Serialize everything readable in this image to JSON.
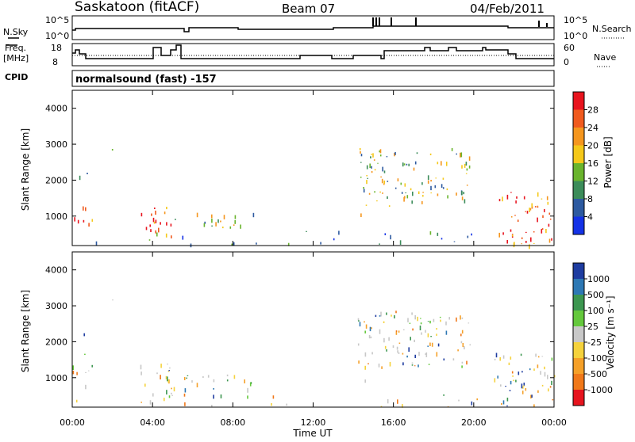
{
  "header": {
    "station": "Saskatoon (fitACF)",
    "beam": "Beam 07",
    "date": "04/Feb/2011"
  },
  "top_panel": {
    "nsky_label": "N.Sky",
    "nsearch_label": "N.Search",
    "left_ticks": [
      "10^5",
      "10^0"
    ],
    "right_ticks": [
      "10^5",
      "10^0"
    ]
  },
  "freq_panel": {
    "freq_label_1": "Freq.",
    "freq_label_2": "[MHz]",
    "nave_label": "Nave",
    "left_ticks": [
      "18",
      "8"
    ],
    "right_ticks": [
      "60",
      "0"
    ]
  },
  "cpid": {
    "label": "CPID",
    "value": "normalsound (fast) -157"
  },
  "power_panel": {
    "ylabel": "Slant Range [km]",
    "yticks": [
      "4000",
      "3000",
      "2000",
      "1000"
    ],
    "colorbar_label": "Power [dB]",
    "colorbar_ticks": [
      "28",
      "24",
      "20",
      "16",
      "12",
      "8",
      "4"
    ],
    "colorbar_colors": [
      "#e8141e",
      "#f05a1e",
      "#f5961e",
      "#f5c819",
      "#6ab42d",
      "#3c8c5a",
      "#2d5aa0",
      "#1432e6"
    ]
  },
  "velocity_panel": {
    "ylabel": "Slant Range [km]",
    "yticks": [
      "4000",
      "3000",
      "2000",
      "1000"
    ],
    "colorbar_label": "Velocity [m s⁻¹]",
    "colorbar_ticks": [
      "1000",
      "500",
      "100",
      "25",
      "-25",
      "-100",
      "-500",
      "-1000"
    ],
    "colorbar_colors": [
      "#1e3ca0",
      "#2d78b4",
      "#3c9650",
      "#64c83c",
      "#c8c8c8",
      "#f5d23c",
      "#f5a028",
      "#f07819",
      "#e6141e"
    ]
  },
  "xaxis": {
    "label": "Time UT",
    "ticks": [
      "00:00",
      "04:00",
      "08:00",
      "12:00",
      "16:00",
      "20:00",
      "00:00"
    ]
  },
  "chart_data": {
    "type": "heatmap",
    "x_range_hours": [
      0,
      24
    ],
    "y_range_km": [
      180,
      4500
    ],
    "power_regions": [
      {
        "t0": 0.0,
        "t1": 1.0,
        "r0": 800,
        "r1": 1400,
        "level": "high"
      },
      {
        "t0": 0.3,
        "t1": 1.0,
        "r0": 1400,
        "r1": 2500,
        "level": "low"
      },
      {
        "t0": 1.9,
        "t1": 2.0,
        "r0": 2800,
        "r1": 3400,
        "level": "mid"
      },
      {
        "t0": 3.3,
        "t1": 5.0,
        "r0": 400,
        "r1": 1400,
        "level": "high"
      },
      {
        "t0": 5.0,
        "t1": 9.0,
        "r0": 700,
        "r1": 1100,
        "level": "mid"
      },
      {
        "t0": 14.2,
        "t1": 19.8,
        "r0": 1300,
        "r1": 2900,
        "level": "mid"
      },
      {
        "t0": 14.2,
        "t1": 14.8,
        "r0": 900,
        "r1": 1100,
        "level": "mid"
      },
      {
        "t0": 21.0,
        "t1": 24.0,
        "r0": 200,
        "r1": 1700,
        "level": "high"
      },
      {
        "t0": 0.0,
        "t1": 21.0,
        "r0": 200,
        "r1": 600,
        "level": "low"
      }
    ]
  }
}
